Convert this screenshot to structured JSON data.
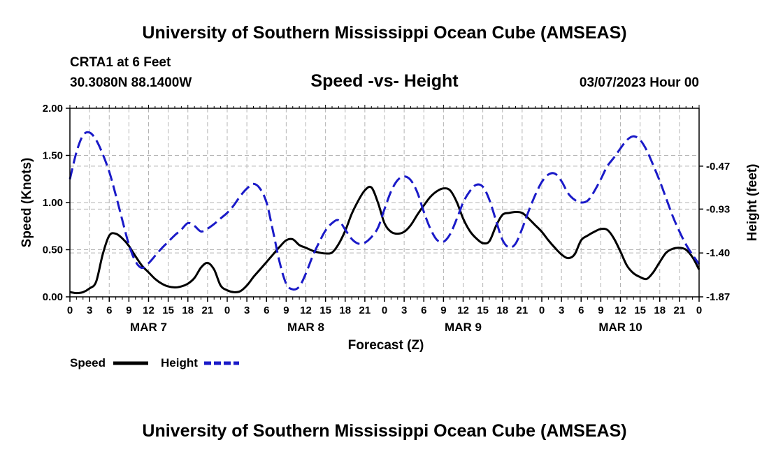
{
  "header": {
    "title": "University of Southern Mississippi Ocean Cube (AMSEAS)",
    "station": "CRTA1 at 6 Feet",
    "coords": "30.3080N  88.1400W",
    "chart_title": "Speed -vs- Height",
    "issued": "03/07/2023 Hour 00"
  },
  "footer": {
    "title": "University of Southern Mississippi Ocean Cube (AMSEAS)"
  },
  "chart_data": {
    "type": "line",
    "title": "Speed -vs- Height",
    "xlabel": "Forecast (Z)",
    "ylabel": "Speed (Knots)",
    "y2label": "Height (feet)",
    "xlim": [
      0,
      96
    ],
    "ylim": [
      0,
      2.0
    ],
    "y2lim": [
      -1.87,
      0.15
    ],
    "x_tick_hours": [
      0,
      3,
      6,
      9,
      12,
      15,
      18,
      21,
      24,
      27,
      30,
      33,
      36,
      39,
      42,
      45,
      48,
      51,
      54,
      57,
      60,
      63,
      66,
      69,
      72,
      75,
      78,
      81,
      84,
      87,
      90,
      93,
      96
    ],
    "x_tick_labels": [
      "0",
      "3",
      "6",
      "9",
      "12",
      "15",
      "18",
      "21",
      "0",
      "3",
      "6",
      "9",
      "12",
      "15",
      "18",
      "21",
      "0",
      "3",
      "6",
      "9",
      "12",
      "15",
      "18",
      "21",
      "0",
      "3",
      "6",
      "9",
      "12",
      "15",
      "18",
      "21",
      "0"
    ],
    "date_labels": [
      {
        "hour": 12,
        "label": "MAR 7"
      },
      {
        "hour": 36,
        "label": "MAR 8"
      },
      {
        "hour": 60,
        "label": "MAR 9"
      },
      {
        "hour": 84,
        "label": "MAR 10"
      }
    ],
    "y_ticks": [
      0.0,
      0.5,
      1.0,
      1.5,
      2.0
    ],
    "y_tick_labels": [
      "0.00",
      "0.50",
      "1.00",
      "1.50",
      "2.00"
    ],
    "y2_ticks": [
      -0.47,
      -0.93,
      -1.4,
      -1.87
    ],
    "y2_tick_labels": [
      "-0.47",
      "-0.93",
      "-1.40",
      "-1.87"
    ],
    "grid": true,
    "series": [
      {
        "name": "Speed",
        "axis": "left",
        "color": "#000000",
        "style": "solid",
        "x": [
          0,
          1,
          2,
          3,
          4,
          5,
          6,
          7,
          8,
          9,
          10,
          11,
          12,
          13,
          14,
          15,
          16,
          17,
          18,
          19,
          20,
          21,
          22,
          23,
          24,
          25,
          26,
          27,
          28,
          29,
          30,
          31,
          32,
          33,
          34,
          35,
          36,
          37,
          38,
          39,
          40,
          41,
          42,
          43,
          44,
          45,
          46,
          47,
          48,
          49,
          50,
          51,
          52,
          53,
          54,
          55,
          56,
          57,
          58,
          59,
          60,
          61,
          62,
          63,
          64,
          65,
          66,
          67,
          68,
          69,
          70,
          71,
          72,
          73,
          74,
          75,
          76,
          77,
          78,
          79,
          80,
          81,
          82,
          83,
          84,
          85,
          86,
          87,
          88,
          89,
          90,
          91,
          92,
          93,
          94,
          95,
          96
        ],
        "values": [
          0.05,
          0.04,
          0.05,
          0.09,
          0.16,
          0.45,
          0.65,
          0.67,
          0.62,
          0.54,
          0.43,
          0.33,
          0.26,
          0.19,
          0.14,
          0.11,
          0.1,
          0.11,
          0.14,
          0.2,
          0.31,
          0.36,
          0.29,
          0.12,
          0.07,
          0.05,
          0.06,
          0.12,
          0.21,
          0.29,
          0.37,
          0.45,
          0.53,
          0.6,
          0.61,
          0.55,
          0.52,
          0.49,
          0.47,
          0.46,
          0.47,
          0.56,
          0.7,
          0.88,
          1.02,
          1.13,
          1.16,
          1.0,
          0.78,
          0.69,
          0.67,
          0.69,
          0.76,
          0.87,
          0.97,
          1.06,
          1.12,
          1.15,
          1.13,
          1.01,
          0.83,
          0.7,
          0.62,
          0.57,
          0.59,
          0.75,
          0.87,
          0.89,
          0.9,
          0.89,
          0.83,
          0.76,
          0.69,
          0.6,
          0.52,
          0.45,
          0.41,
          0.45,
          0.6,
          0.65,
          0.69,
          0.72,
          0.71,
          0.62,
          0.48,
          0.33,
          0.25,
          0.21,
          0.19,
          0.26,
          0.37,
          0.47,
          0.51,
          0.52,
          0.5,
          0.42,
          0.29
        ]
      },
      {
        "name": "Height",
        "axis": "right",
        "color": "#1a1ac8",
        "style": "dashed",
        "x": [
          0,
          1,
          2,
          3,
          4,
          5,
          6,
          7,
          8,
          9,
          10,
          11,
          12,
          13,
          14,
          15,
          16,
          17,
          18,
          19,
          20,
          21,
          22,
          23,
          24,
          25,
          26,
          27,
          28,
          29,
          30,
          31,
          32,
          33,
          34,
          35,
          36,
          37,
          38,
          39,
          40,
          41,
          42,
          43,
          44,
          45,
          46,
          47,
          48,
          49,
          50,
          51,
          52,
          53,
          54,
          55,
          56,
          57,
          58,
          59,
          60,
          61,
          62,
          63,
          64,
          65,
          66,
          67,
          68,
          69,
          70,
          71,
          72,
          73,
          74,
          75,
          76,
          77,
          78,
          79,
          80,
          81,
          82,
          83,
          84,
          85,
          86,
          87,
          88,
          89,
          90,
          91,
          92,
          93,
          94,
          95,
          96
        ],
        "values": [
          -0.61,
          -0.32,
          -0.14,
          -0.11,
          -0.19,
          -0.34,
          -0.53,
          -0.78,
          -1.05,
          -1.31,
          -1.49,
          -1.56,
          -1.51,
          -1.43,
          -1.35,
          -1.28,
          -1.21,
          -1.15,
          -1.08,
          -1.11,
          -1.17,
          -1.14,
          -1.09,
          -1.03,
          -0.97,
          -0.89,
          -0.79,
          -0.71,
          -0.66,
          -0.71,
          -0.86,
          -1.17,
          -1.5,
          -1.73,
          -1.79,
          -1.76,
          -1.62,
          -1.44,
          -1.29,
          -1.16,
          -1.08,
          -1.05,
          -1.15,
          -1.25,
          -1.3,
          -1.29,
          -1.23,
          -1.13,
          -0.93,
          -0.74,
          -0.62,
          -0.58,
          -0.62,
          -0.75,
          -0.96,
          -1.14,
          -1.26,
          -1.28,
          -1.2,
          -1.04,
          -0.86,
          -0.74,
          -0.67,
          -0.69,
          -0.83,
          -1.05,
          -1.26,
          -1.34,
          -1.3,
          -1.14,
          -0.95,
          -0.78,
          -0.64,
          -0.56,
          -0.55,
          -0.63,
          -0.76,
          -0.83,
          -0.86,
          -0.84,
          -0.74,
          -0.61,
          -0.47,
          -0.38,
          -0.28,
          -0.19,
          -0.15,
          -0.19,
          -0.3,
          -0.46,
          -0.63,
          -0.82,
          -1.01,
          -1.17,
          -1.31,
          -1.42,
          -1.52
        ]
      }
    ],
    "legend": [
      {
        "label": "Speed",
        "color": "#000000",
        "style": "solid"
      },
      {
        "label": "Height",
        "color": "#1a1ac8",
        "style": "dashed"
      }
    ],
    "legend_position": "bottom-left"
  }
}
